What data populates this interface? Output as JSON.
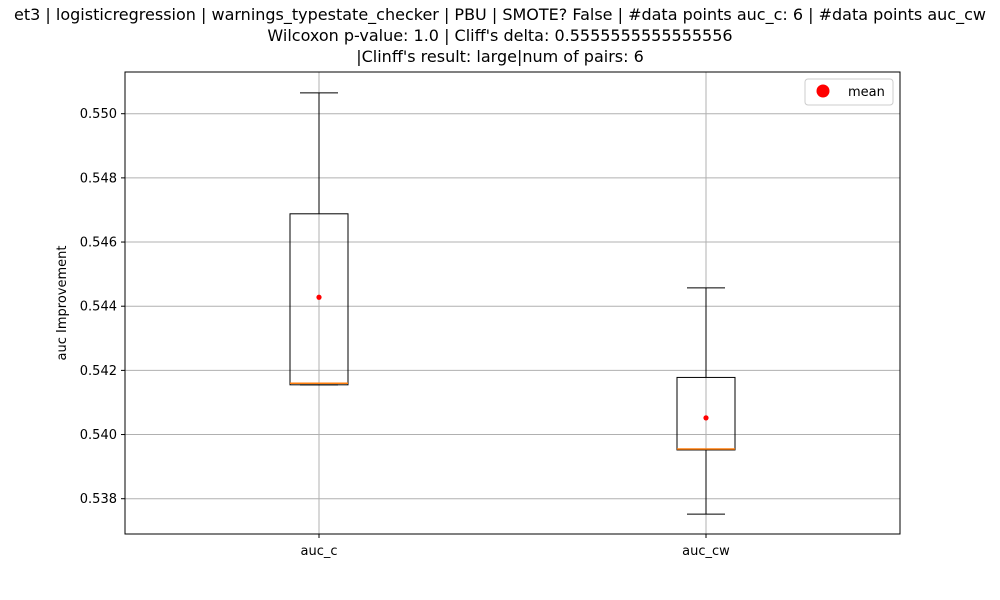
{
  "chart_data": {
    "type": "boxplot",
    "title_lines": [
      "et3 | logisticregression | warnings_typestate_checker | PBU | SMOTE? False | #data points auc_c: 6 | #data points auc_cw",
      "Wilcoxon p-value: 1.0 | Cliff's delta: 0.5555555555555556",
      "|Clinff's result: large|num of pairs: 6"
    ],
    "ylabel": "auc Improvement",
    "xlabel": "",
    "categories": [
      "auc_c",
      "auc_cw"
    ],
    "ylim": [
      0.5369,
      0.5513
    ],
    "yticks": [
      0.538,
      0.54,
      0.542,
      0.544,
      0.546,
      0.548,
      0.55
    ],
    "ytick_labels": [
      "0.538",
      "0.540",
      "0.542",
      "0.544",
      "0.546",
      "0.548",
      "0.550"
    ],
    "grid": true,
    "legend": {
      "position": "top-right",
      "entries": [
        {
          "label": "mean",
          "color": "#ff0000",
          "marker": "circle"
        }
      ]
    },
    "boxes": [
      {
        "name": "auc_c",
        "whisker_low": 0.54155,
        "q1": 0.54155,
        "median": 0.5416,
        "q3": 0.54688,
        "whisker_high": 0.55065,
        "mean": 0.54428
      },
      {
        "name": "auc_cw",
        "whisker_low": 0.53752,
        "q1": 0.53952,
        "median": 0.53955,
        "q3": 0.54178,
        "whisker_high": 0.54457,
        "mean": 0.54052
      }
    ],
    "colors": {
      "box": "#000000",
      "median": "#ff7f0e",
      "mean": "#ff0000",
      "grid": "#b0b0b0"
    }
  }
}
